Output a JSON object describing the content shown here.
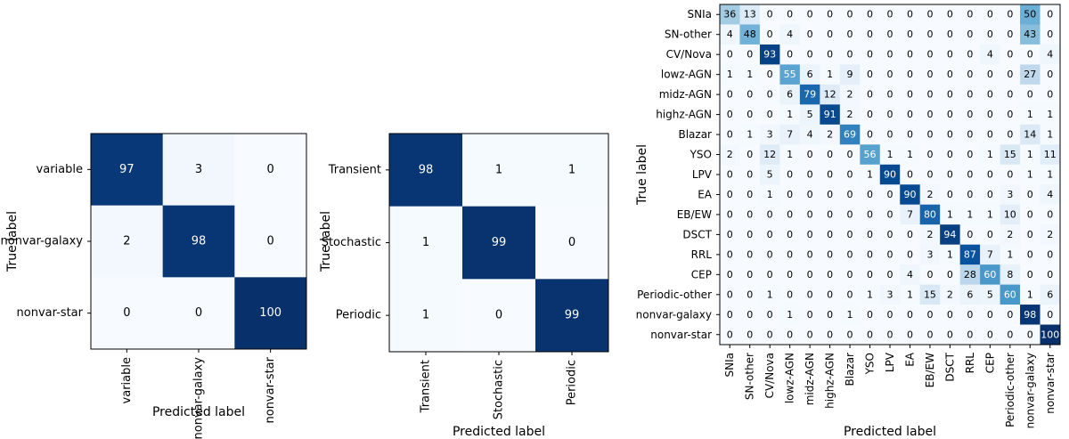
{
  "chart_data": [
    {
      "type": "heatmap",
      "title": "",
      "xlabel": "Predicted label",
      "ylabel": "True label",
      "labels": [
        "variable",
        "nonvar-galaxy",
        "nonvar-star"
      ],
      "values": [
        [
          97,
          3,
          0
        ],
        [
          2,
          98,
          0
        ],
        [
          0,
          0,
          100
        ]
      ],
      "vmin": 0,
      "vmax": 100,
      "colormap": "Blues"
    },
    {
      "type": "heatmap",
      "title": "",
      "xlabel": "Predicted label",
      "ylabel": "True label",
      "labels": [
        "Transient",
        "Stochastic",
        "Periodic"
      ],
      "values": [
        [
          98,
          1,
          1
        ],
        [
          1,
          99,
          0
        ],
        [
          1,
          0,
          99
        ]
      ],
      "vmin": 0,
      "vmax": 100,
      "colormap": "Blues"
    },
    {
      "type": "heatmap",
      "title": "",
      "xlabel": "Predicted label",
      "ylabel": "True label",
      "labels": [
        "SNIa",
        "SN-other",
        "CV/Nova",
        "lowz-AGN",
        "midz-AGN",
        "highz-AGN",
        "Blazar",
        "YSO",
        "LPV",
        "EA",
        "EB/EW",
        "DSCT",
        "RRL",
        "CEP",
        "Periodic-other",
        "nonvar-galaxy",
        "nonvar-star"
      ],
      "values": [
        [
          36,
          13,
          0,
          0,
          0,
          0,
          0,
          0,
          0,
          0,
          0,
          0,
          0,
          0,
          0,
          50,
          0
        ],
        [
          4,
          48,
          0,
          4,
          0,
          0,
          0,
          0,
          0,
          0,
          0,
          0,
          0,
          0,
          0,
          43,
          0
        ],
        [
          0,
          0,
          93,
          0,
          0,
          0,
          0,
          0,
          0,
          0,
          0,
          0,
          0,
          4,
          0,
          0,
          4
        ],
        [
          1,
          1,
          0,
          55,
          6,
          1,
          9,
          0,
          0,
          0,
          0,
          0,
          0,
          0,
          0,
          27,
          0
        ],
        [
          0,
          0,
          0,
          6,
          79,
          12,
          2,
          0,
          0,
          0,
          0,
          0,
          0,
          0,
          0,
          0,
          0
        ],
        [
          0,
          0,
          0,
          1,
          5,
          91,
          2,
          0,
          0,
          0,
          0,
          0,
          0,
          0,
          0,
          1,
          1
        ],
        [
          0,
          1,
          3,
          7,
          4,
          2,
          69,
          0,
          0,
          0,
          0,
          0,
          0,
          0,
          0,
          14,
          1
        ],
        [
          2,
          0,
          12,
          1,
          0,
          0,
          0,
          56,
          1,
          1,
          0,
          0,
          0,
          1,
          15,
          1,
          11
        ],
        [
          0,
          0,
          5,
          0,
          0,
          0,
          0,
          1,
          90,
          0,
          0,
          0,
          0,
          0,
          0,
          1,
          1
        ],
        [
          0,
          0,
          1,
          0,
          0,
          0,
          0,
          0,
          0,
          90,
          2,
          0,
          0,
          0,
          3,
          0,
          4
        ],
        [
          0,
          0,
          0,
          0,
          0,
          0,
          0,
          0,
          0,
          7,
          80,
          1,
          1,
          1,
          10,
          0,
          0
        ],
        [
          0,
          0,
          0,
          0,
          0,
          0,
          0,
          0,
          0,
          0,
          2,
          94,
          0,
          0,
          2,
          0,
          2
        ],
        [
          0,
          0,
          0,
          0,
          0,
          0,
          0,
          0,
          0,
          0,
          3,
          1,
          87,
          7,
          1,
          0,
          0
        ],
        [
          0,
          0,
          0,
          0,
          0,
          0,
          0,
          0,
          0,
          4,
          0,
          0,
          28,
          60,
          8,
          0,
          0
        ],
        [
          0,
          0,
          1,
          0,
          0,
          0,
          0,
          1,
          3,
          1,
          15,
          2,
          6,
          5,
          60,
          1,
          6
        ],
        [
          0,
          0,
          0,
          1,
          0,
          0,
          1,
          0,
          0,
          0,
          0,
          0,
          0,
          0,
          0,
          98,
          0
        ],
        [
          0,
          0,
          0,
          0,
          0,
          0,
          0,
          0,
          0,
          0,
          0,
          0,
          0,
          0,
          0,
          0,
          100
        ]
      ],
      "vmin": 0,
      "vmax": 100,
      "colormap": "Blues"
    }
  ]
}
